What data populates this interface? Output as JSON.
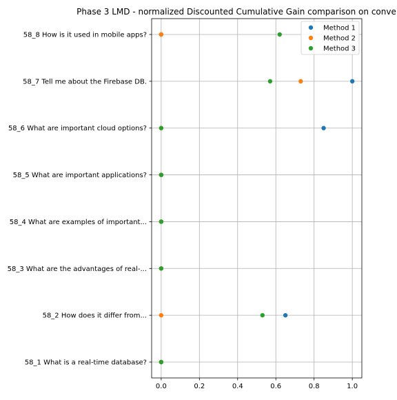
{
  "chart_data": {
    "type": "scatter",
    "title": "Phase 3 LMD - normalized Discounted Cumulative Gain comparison on conve",
    "xlabel": "",
    "ylabel": "",
    "xlim": [
      -0.05,
      1.05
    ],
    "x_ticks": [
      0.0,
      0.2,
      0.4,
      0.6,
      0.8,
      1.0
    ],
    "x_tick_labels": [
      "0.0",
      "0.2",
      "0.4",
      "0.6",
      "0.8",
      "1.0"
    ],
    "categories": [
      "58_1 What is a real-time database?",
      "58_2 How does it differ from...",
      "58_3 What are the advantages of real-...",
      "58_4 What are examples of important...",
      "58_5 What are important applications?",
      "58_6 What are important cloud options?",
      "58_7 Tell me about the Firebase DB.",
      "58_8 How is it used in mobile apps?"
    ],
    "grid": true,
    "legend_position": "top-right",
    "series": [
      {
        "name": "Method 1",
        "color": "#1f77b4",
        "values": [
          0.0,
          0.65,
          0.0,
          0.0,
          0.0,
          0.85,
          1.0,
          0.0
        ]
      },
      {
        "name": "Method 2",
        "color": "#ff7f0e",
        "values": [
          0.0,
          0.0,
          0.0,
          0.0,
          0.0,
          0.0,
          0.73,
          0.0
        ]
      },
      {
        "name": "Method 3",
        "color": "#2ca02c",
        "values": [
          0.0,
          0.53,
          0.0,
          0.0,
          0.0,
          0.0,
          0.57,
          0.62
        ]
      }
    ]
  }
}
